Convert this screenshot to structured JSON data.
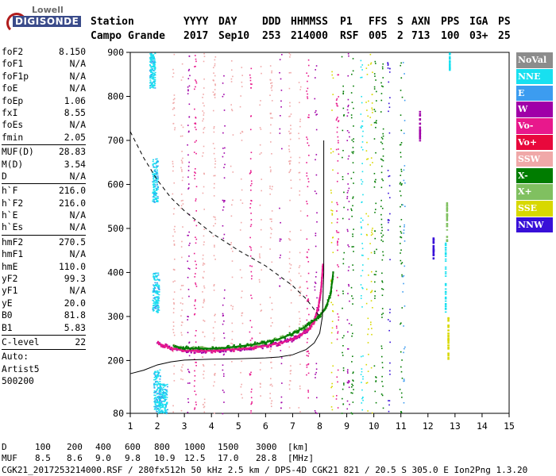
{
  "logo": {
    "line1": "Lowell",
    "line2": "DIGISONDE"
  },
  "header": {
    "row1": [
      "Station",
      "YYYY",
      "DAY",
      "DDD",
      "HHMMSS",
      "P1",
      "FFS",
      "S",
      "AXN",
      "PPS",
      "IGA",
      "PS"
    ],
    "row2": [
      "Campo Grande",
      "2017",
      "Sep10",
      "253",
      "214000",
      "RSF",
      "005",
      "2",
      "713",
      "100",
      "03+",
      "25"
    ]
  },
  "params": [
    {
      "label": "foF2",
      "value": "8.150"
    },
    {
      "label": "foF1",
      "value": "N/A"
    },
    {
      "label": "foF1p",
      "value": "N/A"
    },
    {
      "label": "foE",
      "value": "N/A"
    },
    {
      "label": "foEp",
      "value": "1.06"
    },
    {
      "label": "fxI",
      "value": "8.55"
    },
    {
      "label": "foEs",
      "value": "N/A"
    },
    {
      "label": "fmin",
      "value": "2.05"
    },
    {
      "sep": true
    },
    {
      "label": "MUF(D)",
      "value": "28.83"
    },
    {
      "label": "M(D)",
      "value": "3.54"
    },
    {
      "label": "D",
      "value": "N/A"
    },
    {
      "sep": true
    },
    {
      "label": "h`F",
      "value": "216.0"
    },
    {
      "label": "h`F2",
      "value": "216.0"
    },
    {
      "label": "h`E",
      "value": "N/A"
    },
    {
      "label": "h`Es",
      "value": "N/A"
    },
    {
      "sep": true
    },
    {
      "label": "hmF2",
      "value": "270.5"
    },
    {
      "label": "hmF1",
      "value": "N/A"
    },
    {
      "label": "hmE",
      "value": "110.0"
    },
    {
      "label": "yF2",
      "value": "99.3"
    },
    {
      "label": "yF1",
      "value": "N/A"
    },
    {
      "label": "yE",
      "value": "20.0"
    },
    {
      "label": "B0",
      "value": "81.8"
    },
    {
      "label": "B1",
      "value": "5.83"
    },
    {
      "sep": true
    },
    {
      "label": "C-level",
      "value": "22"
    },
    {
      "sep": true
    },
    {
      "text": "Auto:"
    },
    {
      "text": "Artist5"
    },
    {
      "text": "500200"
    }
  ],
  "legend": [
    {
      "label": "NoVal",
      "color": "#8c8c8c"
    },
    {
      "label": "NNE",
      "color": "#18e0f0"
    },
    {
      "label": "E",
      "color": "#3c9cf0"
    },
    {
      "label": "W",
      "color": "#a000a8"
    },
    {
      "label": "Vo-",
      "color": "#e8188c"
    },
    {
      "label": "Vo+",
      "color": "#e8083c"
    },
    {
      "label": "SSW",
      "color": "#f0a8a8"
    },
    {
      "label": "X-",
      "color": "#007c00"
    },
    {
      "label": "X+",
      "color": "#80c060"
    },
    {
      "label": "SSE",
      "color": "#d8d800"
    },
    {
      "label": "NNW",
      "color": "#3810d8"
    }
  ],
  "bottom": {
    "d_label": "D",
    "d_values": [
      "100",
      "200",
      "400",
      "600",
      "800",
      "1000",
      "1500",
      "3000"
    ],
    "d_unit": "[km]",
    "muf_label": "MUF",
    "muf_values": [
      "8.5",
      "8.6",
      "9.0",
      "9.8",
      "10.9",
      "12.5",
      "17.0",
      "28.8"
    ],
    "muf_unit": "[MHz]",
    "footer": "CGK21_2017253214000.RSF / 280fx512h 50 kHz 2.5 km / DPS-4D CGK21 821 / 20.5 S 305.0 E Ion2Png 1.3.20"
  },
  "chart_data": {
    "type": "scatter",
    "xlim": [
      1,
      15
    ],
    "ylim": [
      80,
      900
    ],
    "xticks": [
      1,
      2,
      3,
      4,
      5,
      6,
      7,
      8,
      9,
      10,
      11,
      12,
      13,
      14,
      15
    ],
    "yticks": [
      80,
      200,
      300,
      400,
      500,
      600,
      700,
      800,
      900
    ],
    "series": [
      {
        "name": "O-trace (Vo-/Vo+)",
        "points": [
          [
            2.0,
            240
          ],
          [
            2.5,
            228
          ],
          [
            3,
            222
          ],
          [
            3.5,
            222
          ],
          [
            4,
            222
          ],
          [
            4.5,
            224
          ],
          [
            5,
            226
          ],
          [
            5.5,
            229
          ],
          [
            6,
            233
          ],
          [
            6.5,
            239
          ],
          [
            7,
            248
          ],
          [
            7.3,
            258
          ],
          [
            7.6,
            272
          ],
          [
            7.8,
            290
          ],
          [
            7.95,
            320
          ],
          [
            8.05,
            360
          ],
          [
            8.12,
            420
          ]
        ]
      },
      {
        "name": "X-trace (X-)",
        "points": [
          [
            2.6,
            232
          ],
          [
            3,
            228
          ],
          [
            3.5,
            227
          ],
          [
            4,
            227
          ],
          [
            4.5,
            229
          ],
          [
            5,
            232
          ],
          [
            5.5,
            236
          ],
          [
            6,
            241
          ],
          [
            6.5,
            249
          ],
          [
            7,
            261
          ],
          [
            7.5,
            278
          ],
          [
            7.9,
            296
          ],
          [
            8.2,
            316
          ],
          [
            8.4,
            350
          ],
          [
            8.5,
            400
          ]
        ]
      },
      {
        "name": "true-height profile",
        "points": [
          [
            1.0,
            170
          ],
          [
            1.5,
            178
          ],
          [
            2,
            190
          ],
          [
            2.5,
            197
          ],
          [
            3,
            201
          ],
          [
            4,
            203
          ],
          [
            5,
            204
          ],
          [
            6,
            206
          ],
          [
            6.5,
            208
          ],
          [
            7,
            213
          ],
          [
            7.5,
            225
          ],
          [
            7.8,
            240
          ],
          [
            8.0,
            262
          ],
          [
            8.1,
            300
          ],
          [
            8.15,
            400
          ],
          [
            8.15,
            700
          ]
        ]
      },
      {
        "name": "MUF(D) curve",
        "points": [
          [
            1.0,
            720
          ],
          [
            1.5,
            660
          ],
          [
            2,
            610
          ],
          [
            2.5,
            570
          ],
          [
            3,
            540
          ],
          [
            4,
            490
          ],
          [
            5,
            450
          ],
          [
            6,
            415
          ],
          [
            7,
            370
          ],
          [
            7.5,
            340
          ],
          [
            8,
            300
          ]
        ]
      }
    ]
  }
}
